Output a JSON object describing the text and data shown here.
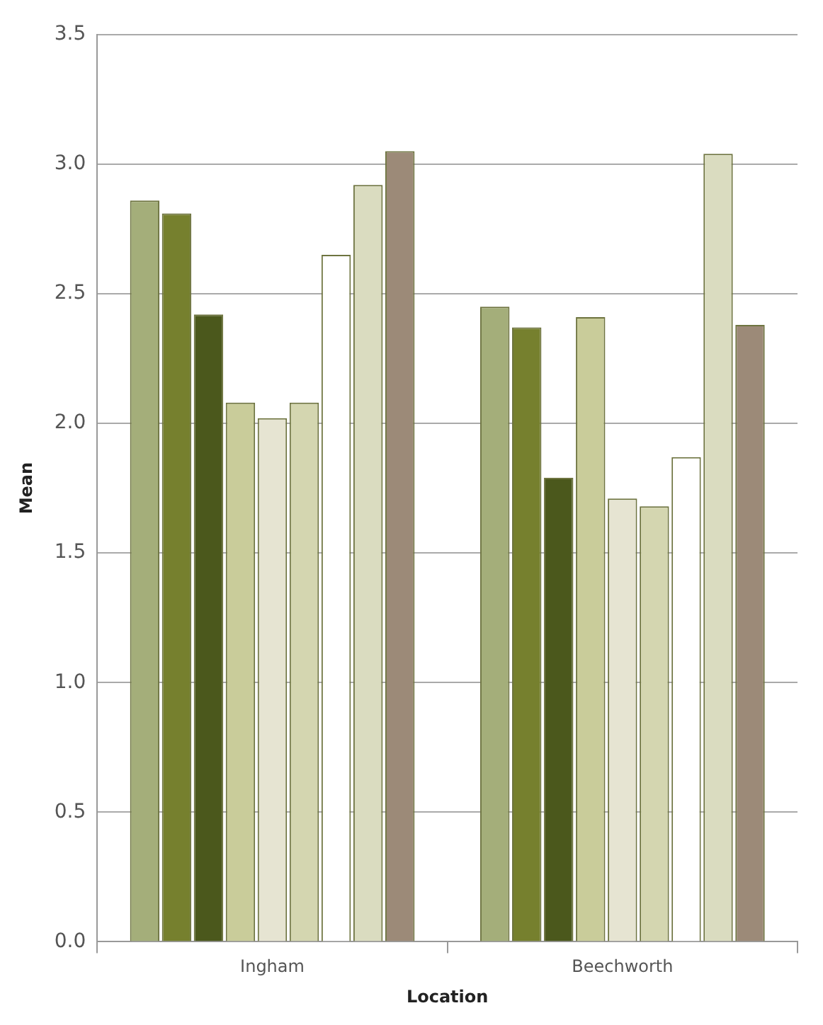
{
  "chart_data": {
    "type": "bar",
    "xlabel": "Location",
    "ylabel": "Mean",
    "categories": [
      "Ingham",
      "Beechworth"
    ],
    "series": [
      {
        "color": "#a4ae7a",
        "values": [
          2.86,
          2.45
        ]
      },
      {
        "color": "#76802e",
        "values": [
          2.81,
          2.37
        ]
      },
      {
        "color": "#4b581c",
        "values": [
          2.42,
          1.79
        ]
      },
      {
        "color": "#c9cc9a",
        "values": [
          2.08,
          2.41
        ]
      },
      {
        "color": "#e6e4d2",
        "values": [
          2.02,
          1.71
        ]
      },
      {
        "color": "#d4d6b0",
        "values": [
          2.08,
          1.68
        ]
      },
      {
        "color": "#ffffff",
        "values": [
          2.65,
          1.87
        ]
      },
      {
        "color": "#dadcc0",
        "values": [
          2.92,
          3.04
        ]
      },
      {
        "color": "#9c8a78",
        "values": [
          3.05,
          2.38
        ]
      }
    ],
    "ylim": [
      0,
      3.5
    ],
    "yticks": [
      {
        "value": 0,
        "label": "0.0"
      },
      {
        "value": 0.5,
        "label": "0.5"
      },
      {
        "value": 1,
        "label": "1.0"
      },
      {
        "value": 1.5,
        "label": "1.5"
      },
      {
        "value": 2,
        "label": "2.0"
      },
      {
        "value": 2.5,
        "label": "2.5"
      },
      {
        "value": 3,
        "label": "3.0"
      },
      {
        "value": 3.5,
        "label": "3.5"
      }
    ],
    "grid": "y"
  }
}
